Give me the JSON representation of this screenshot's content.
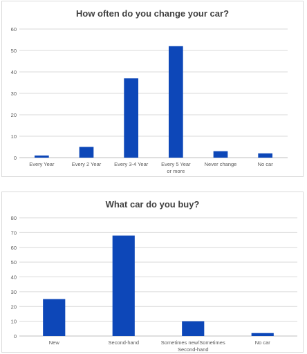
{
  "chart_data": [
    {
      "type": "bar",
      "title": "How often do you change your car?",
      "categories": [
        "Every Year",
        "Every 2 Year",
        "Every 3-4 Year",
        "Every 5 Year or more",
        "Never change",
        "No car"
      ],
      "values": [
        1,
        5,
        37,
        52,
        3,
        2
      ],
      "xlabel": "",
      "ylabel": "",
      "ylim": [
        0,
        60
      ],
      "yticks": [
        0,
        10,
        20,
        30,
        40,
        50,
        60
      ],
      "grid": true,
      "bar_color": "#0d47b8"
    },
    {
      "type": "bar",
      "title": "What car do you buy?",
      "categories": [
        "New",
        "Second-hand",
        "Sometimes new/Sometimes Second-hand",
        "No car"
      ],
      "values": [
        25,
        68,
        10,
        2
      ],
      "xlabel": "",
      "ylabel": "",
      "ylim": [
        0,
        80
      ],
      "yticks": [
        0,
        10,
        20,
        30,
        40,
        50,
        60,
        70,
        80
      ],
      "grid": true,
      "bar_color": "#0d47b8"
    }
  ]
}
